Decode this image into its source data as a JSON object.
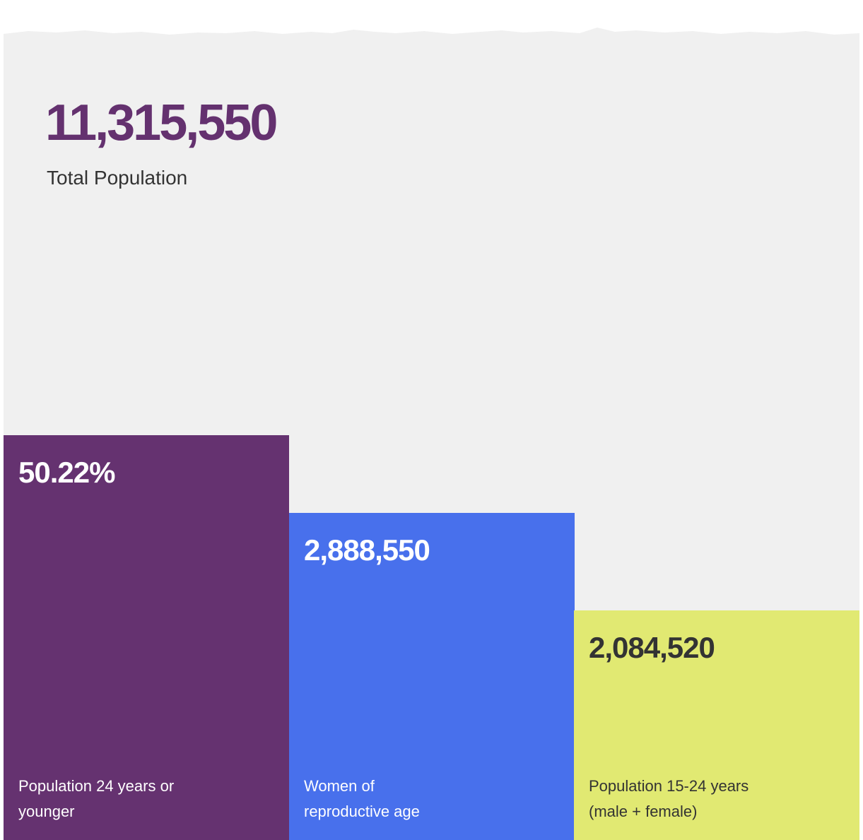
{
  "total": {
    "value": "11,315,550",
    "label": "Total Population"
  },
  "cards": [
    {
      "value": "50.22%",
      "label_lines": [
        "Population 24 years or",
        "younger"
      ]
    },
    {
      "value": "2,888,550",
      "label_lines": [
        "Women of",
        "reproductive age"
      ]
    },
    {
      "value": "2,084,520",
      "label_lines": [
        "Population 15-24 years",
        "(male + female)"
      ]
    }
  ]
}
